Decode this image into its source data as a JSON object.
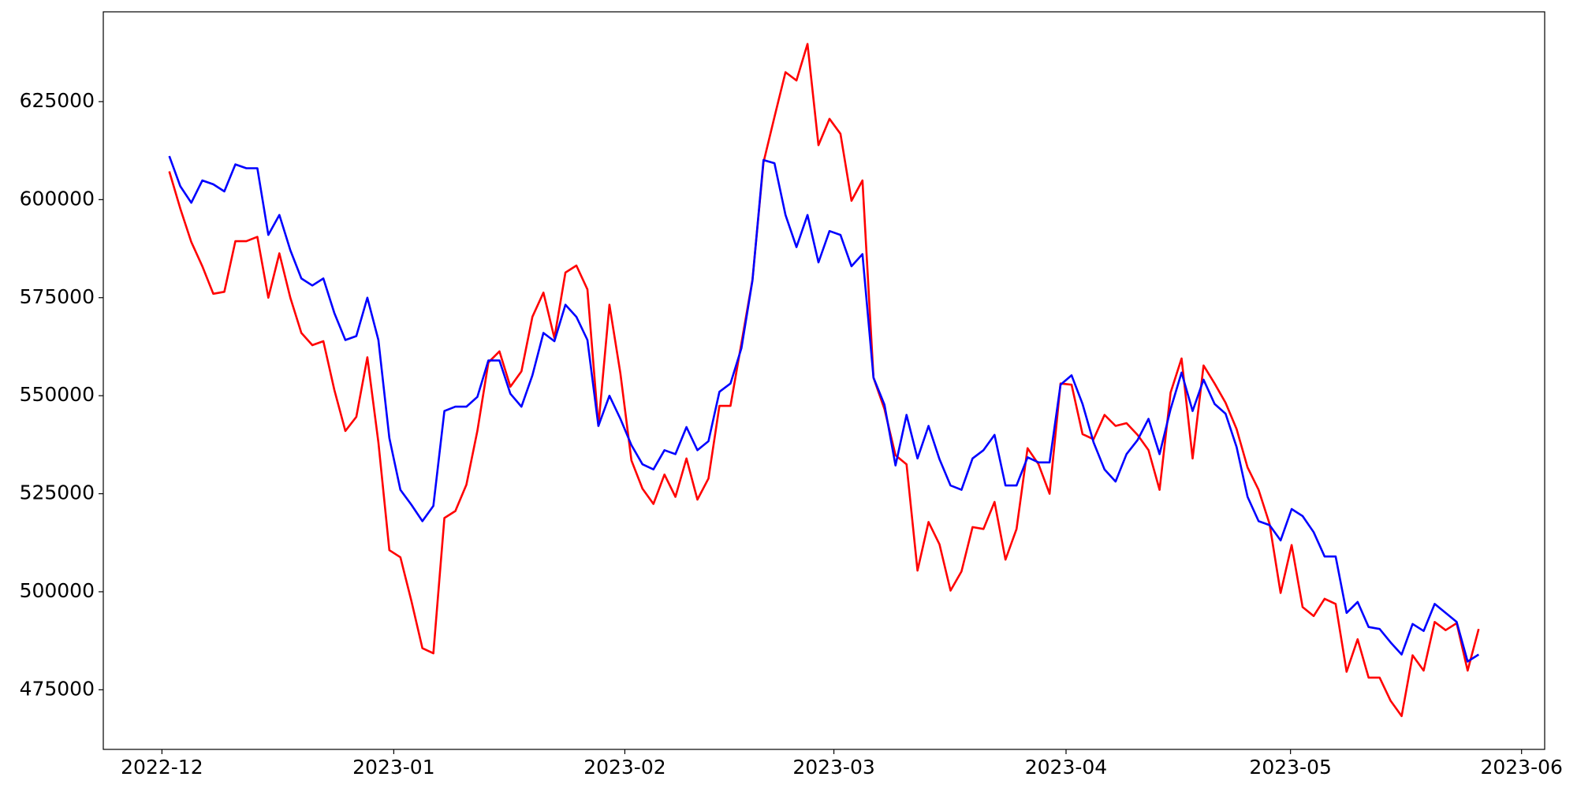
{
  "chart_data": {
    "type": "line",
    "categories": [
      null,
      null,
      null,
      null,
      null,
      null,
      null,
      null,
      null,
      null,
      null,
      null,
      null,
      null,
      null,
      null,
      null,
      null,
      null,
      null,
      null,
      null,
      null,
      null,
      null,
      null,
      null,
      null,
      null,
      null,
      null,
      null,
      null,
      null,
      null,
      null,
      null,
      null,
      null,
      null,
      null,
      null,
      null,
      null,
      null,
      null,
      null,
      null,
      null,
      null,
      null,
      null,
      null,
      null,
      null,
      null,
      null,
      null,
      null,
      null,
      null,
      null,
      null,
      null,
      null,
      null,
      null,
      null,
      null,
      null,
      null,
      null,
      null,
      null,
      null,
      null,
      null,
      null,
      null,
      null,
      null,
      null,
      null,
      null,
      null,
      null,
      null,
      null,
      null,
      null,
      null,
      null,
      null,
      null,
      null,
      null,
      null,
      null,
      null,
      null,
      null,
      null,
      null,
      null,
      null,
      null,
      null,
      null,
      null,
      null,
      null,
      null,
      null,
      null,
      null,
      null,
      null,
      null,
      null,
      null
    ],
    "series": [
      {
        "color": "red",
        "values": [
          607200,
          597700,
          589200,
          583000,
          576000,
          576500,
          589400,
          589400,
          590500,
          575000,
          586300,
          575000,
          566000,
          562900,
          563900,
          551500,
          541000,
          544600,
          559800,
          538100,
          510600,
          508800,
          497700,
          485600,
          484300,
          518800,
          520600,
          527300,
          541000,
          558500,
          561300,
          552300,
          556200,
          570100,
          576300,
          564700,
          581400,
          583200,
          577100,
          542300,
          573200,
          555700,
          533500,
          526300,
          522400,
          529900,
          524200,
          534000,
          523500,
          528900,
          547400,
          547400,
          563400,
          579600,
          609500,
          621100,
          632500,
          630400,
          639700,
          613900,
          620600,
          616800,
          599700,
          604900,
          554600,
          546600,
          534800,
          532500,
          505400,
          517800,
          512100,
          500300,
          505200,
          516500,
          516000,
          522900,
          508200,
          516000,
          536600,
          532500,
          525000,
          553100,
          552800,
          540200,
          538900,
          545100,
          542300,
          543000,
          540000,
          536100,
          526000,
          550800,
          559500,
          534000,
          557700,
          553100,
          548200,
          541500,
          531700,
          526000,
          517300,
          499700,
          511900,
          496100,
          493800,
          498200,
          496900,
          479600,
          487900,
          478100,
          478100,
          472200,
          468300,
          483800,
          479900,
          492300,
          490200,
          492000,
          479900,
          490500
        ]
      },
      {
        "color": "blue",
        "values": [
          611100,
          603400,
          599200,
          604900,
          603900,
          602100,
          609000,
          608000,
          608000,
          591000,
          596100,
          587100,
          579900,
          578100,
          579900,
          571100,
          564200,
          565200,
          575000,
          564200,
          539200,
          526000,
          522200,
          518000,
          521900,
          546100,
          547200,
          547200,
          549700,
          559000,
          559000,
          550500,
          547200,
          555200,
          566000,
          563900,
          573200,
          570100,
          564200,
          542300,
          550000,
          544100,
          537400,
          532500,
          531200,
          536100,
          535100,
          542000,
          536100,
          538400,
          551000,
          553100,
          562100,
          579400,
          610100,
          609300,
          596100,
          587900,
          596100,
          584000,
          592000,
          591000,
          583000,
          586100,
          554600,
          547700,
          532200,
          545100,
          534000,
          542300,
          533800,
          527100,
          526000,
          534000,
          536100,
          540000,
          527100,
          527100,
          534300,
          533000,
          533000,
          552800,
          555200,
          547900,
          538100,
          531200,
          528100,
          535100,
          538700,
          544100,
          535100,
          546600,
          555900,
          546100,
          554100,
          547900,
          545400,
          536900,
          524200,
          518000,
          517000,
          513100,
          521100,
          519300,
          515200,
          509000,
          509000,
          494600,
          497400,
          491000,
          490500,
          487100,
          484000,
          491800,
          490000,
          496900,
          494600,
          492300,
          482200,
          484000
        ]
      }
    ],
    "xlim": [
      -6,
      125
    ],
    "xticks": [
      {
        "value": -0.67,
        "label": "2022-12"
      },
      {
        "value": 20.4,
        "label": "2023-01"
      },
      {
        "value": 41.4,
        "label": "2023-02"
      },
      {
        "value": 60.4,
        "label": "2023-03"
      },
      {
        "value": 81.5,
        "label": "2023-04"
      },
      {
        "value": 101.9,
        "label": "2023-05"
      },
      {
        "value": 122.9,
        "label": "2023-06"
      }
    ],
    "ylim": [
      459800,
      647900
    ],
    "yticks": [
      475000,
      500000,
      525000,
      550000,
      575000,
      600000,
      625000
    ],
    "grid": false
  }
}
